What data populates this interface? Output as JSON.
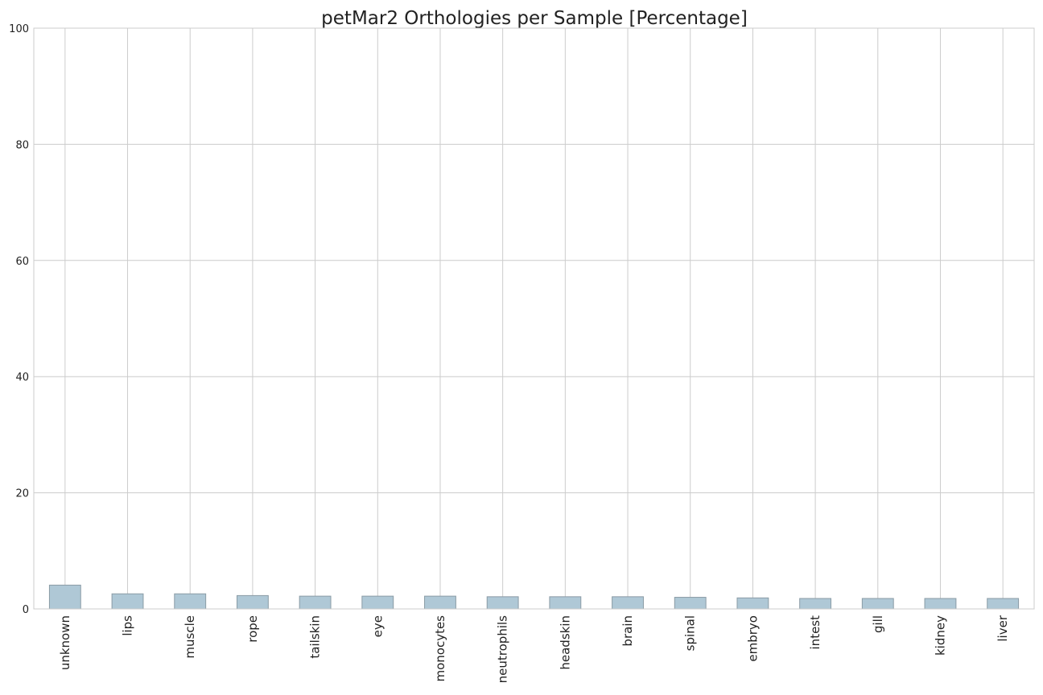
{
  "chart_data": {
    "type": "bar",
    "title": "petMar2 Orthologies per Sample [Percentage]",
    "xlabel": "",
    "ylabel": "",
    "ylim": [
      0,
      100
    ],
    "yticks": [
      0,
      20,
      40,
      60,
      80,
      100
    ],
    "grid": true,
    "categories": [
      "unknown",
      "lips",
      "muscle",
      "rope",
      "tailskin",
      "eye",
      "monocytes",
      "neutrophils",
      "headskin",
      "brain",
      "spinal",
      "embryo",
      "intest",
      "gill",
      "kidney",
      "liver"
    ],
    "values": [
      4.1,
      2.6,
      2.6,
      2.3,
      2.2,
      2.2,
      2.2,
      2.1,
      2.1,
      2.1,
      2.0,
      1.9,
      1.8,
      1.8,
      1.8,
      1.8
    ],
    "colors": {
      "bar_fill": "#afc8d6",
      "bar_edge": "#8a9ba5",
      "grid": "#cccccc",
      "baseline": "#000000"
    }
  }
}
